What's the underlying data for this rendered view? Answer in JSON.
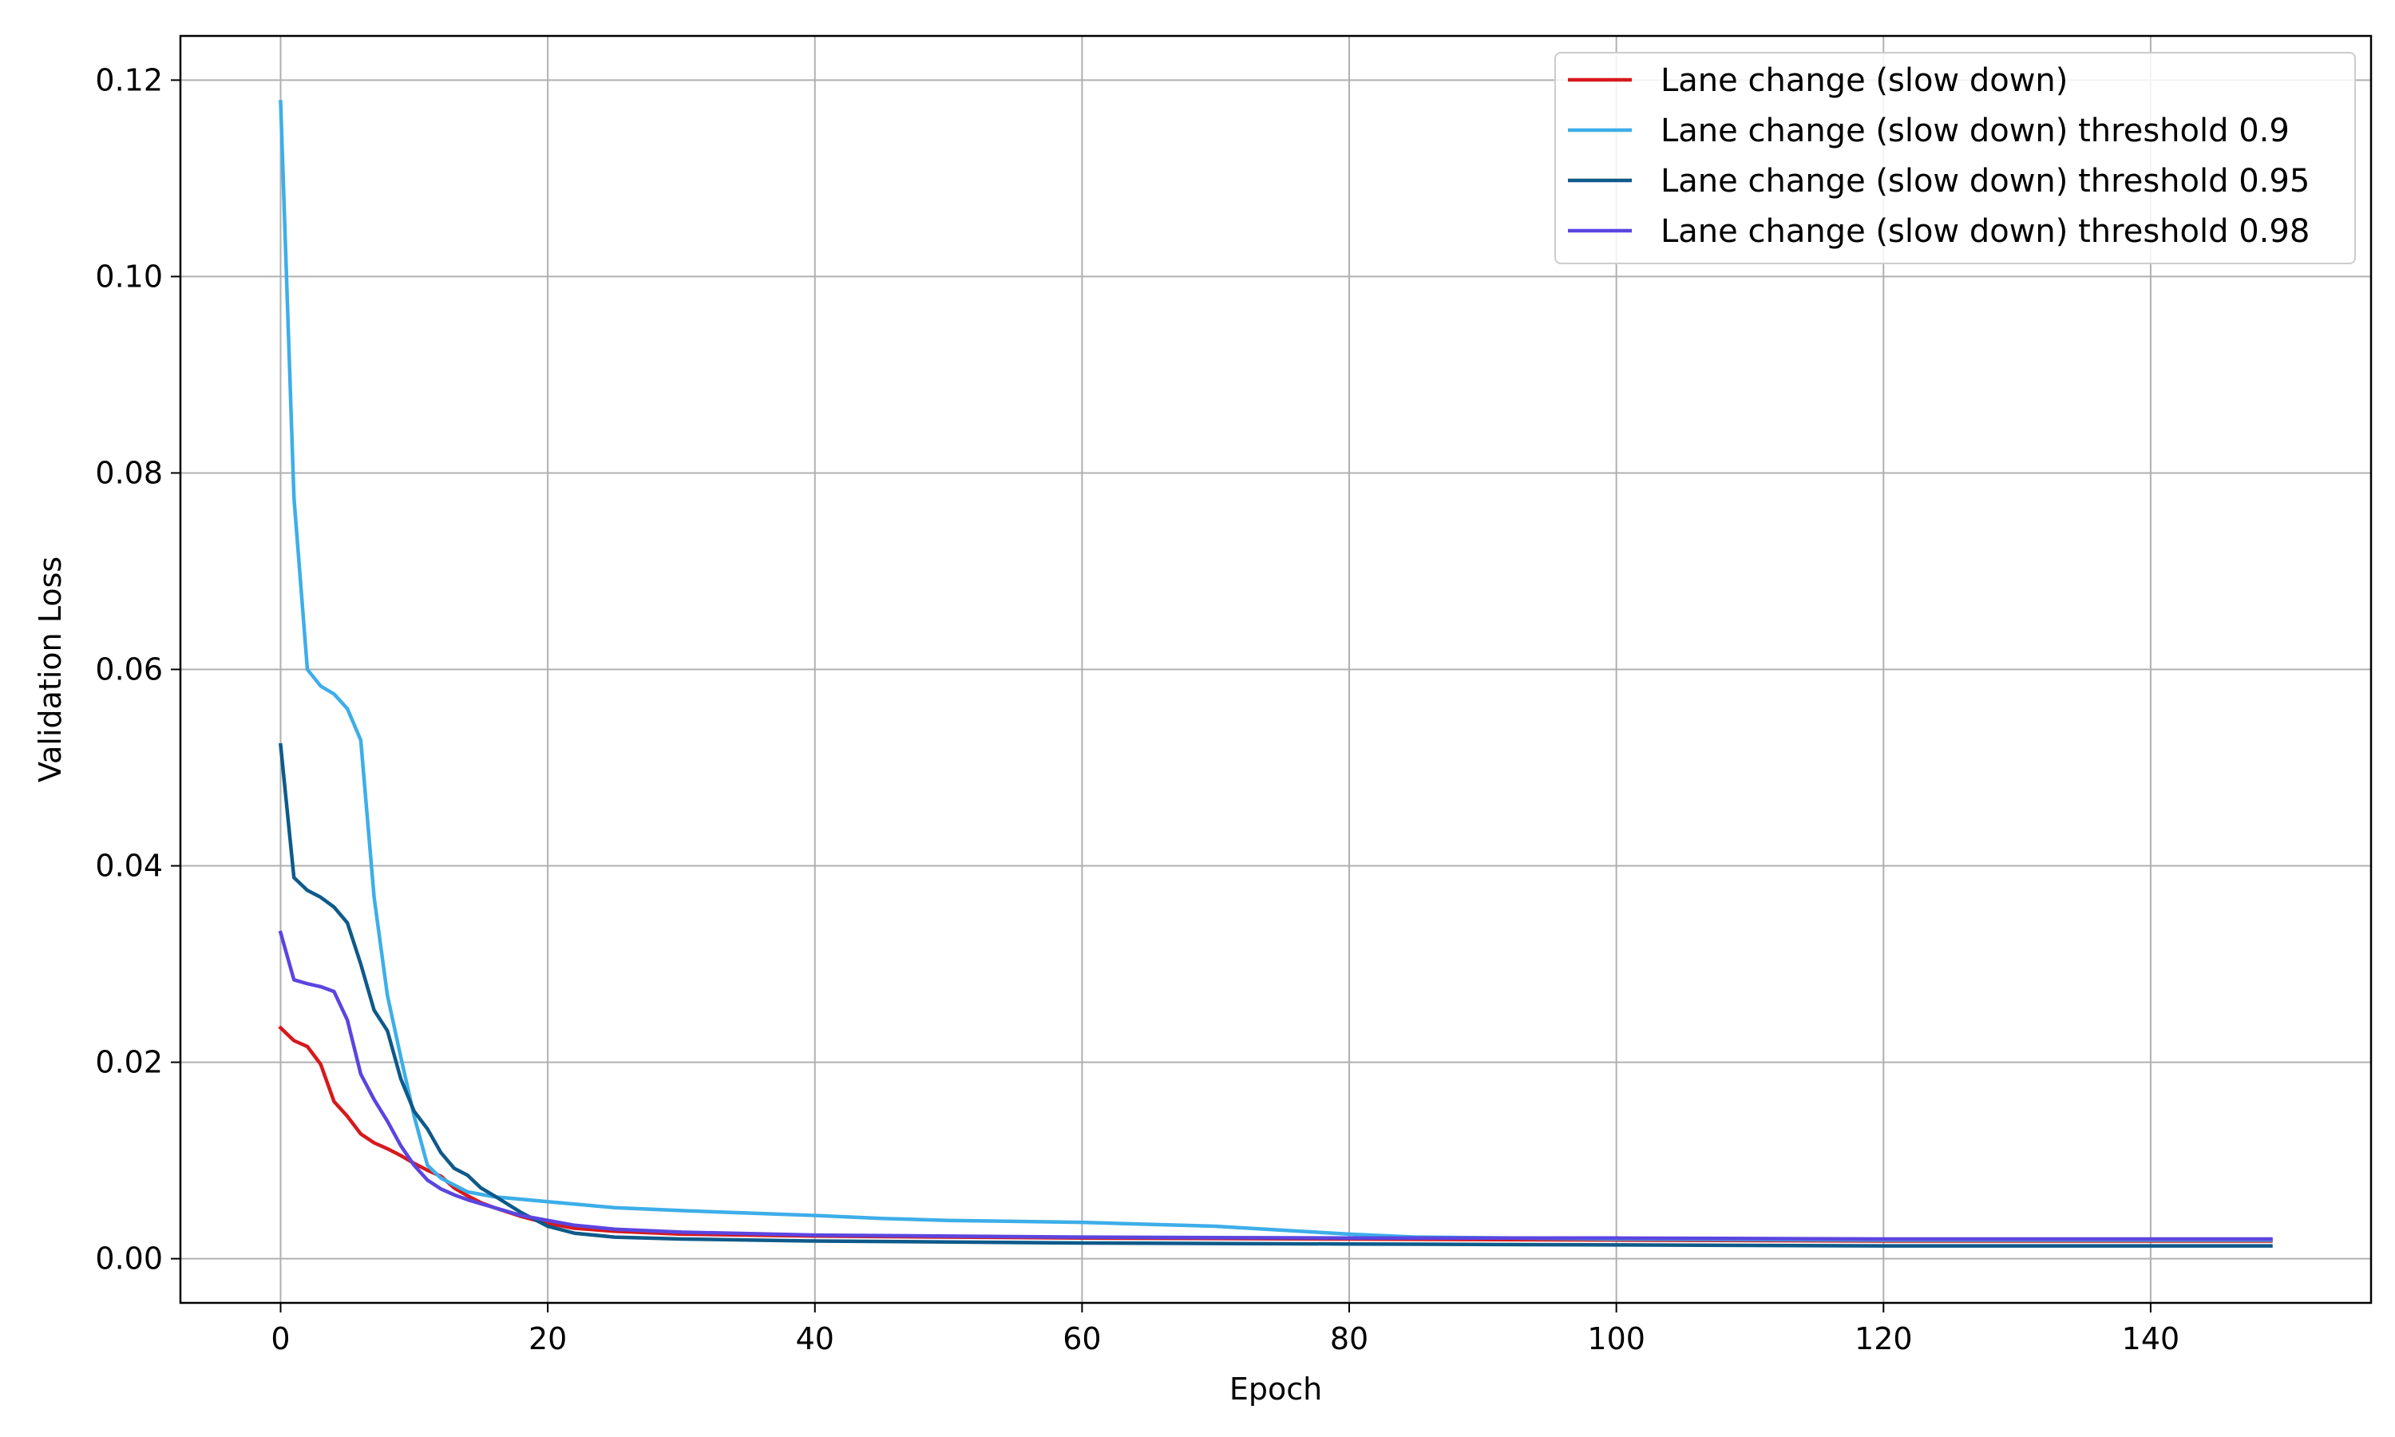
{
  "chart_data": {
    "type": "line",
    "xlabel": "Epoch",
    "ylabel": "Validation Loss",
    "xlim": [
      -7.5,
      156.5
    ],
    "ylim": [
      -0.0045,
      0.1245
    ],
    "xticks": [
      0,
      20,
      40,
      60,
      80,
      100,
      120,
      140
    ],
    "xtick_labels": [
      "0",
      "20",
      "40",
      "60",
      "80",
      "100",
      "120",
      "140"
    ],
    "yticks": [
      0.0,
      0.02,
      0.04,
      0.06,
      0.08,
      0.1,
      0.12
    ],
    "ytick_labels": [
      "0.00",
      "0.02",
      "0.04",
      "0.06",
      "0.08",
      "0.10",
      "0.12"
    ],
    "grid": true,
    "legend_position": "top-right",
    "series": [
      {
        "name": "Lane change (slow down)",
        "color": "#d7191c",
        "points": [
          [
            0,
            0.0235
          ],
          [
            1,
            0.0222
          ],
          [
            2,
            0.0216
          ],
          [
            3,
            0.0198
          ],
          [
            4,
            0.016
          ],
          [
            5,
            0.0145
          ],
          [
            6,
            0.0127
          ],
          [
            7,
            0.0118
          ],
          [
            8,
            0.0112
          ],
          [
            9,
            0.0105
          ],
          [
            10,
            0.0097
          ],
          [
            11,
            0.009
          ],
          [
            12,
            0.0084
          ],
          [
            13,
            0.0072
          ],
          [
            14,
            0.0064
          ],
          [
            15,
            0.0057
          ],
          [
            16,
            0.0052
          ],
          [
            18,
            0.0043
          ],
          [
            20,
            0.0036
          ],
          [
            22,
            0.0031
          ],
          [
            25,
            0.0028
          ],
          [
            30,
            0.0025
          ],
          [
            40,
            0.0023
          ],
          [
            60,
            0.0021
          ],
          [
            80,
            0.002
          ],
          [
            100,
            0.0019
          ],
          [
            120,
            0.0018
          ],
          [
            149,
            0.0018
          ]
        ]
      },
      {
        "name": "Lane change (slow down) threshold 0.9",
        "color": "#3daee9",
        "points": [
          [
            0,
            0.1178
          ],
          [
            1,
            0.0775
          ],
          [
            2,
            0.06
          ],
          [
            3,
            0.0583
          ],
          [
            4,
            0.0575
          ],
          [
            5,
            0.056
          ],
          [
            6,
            0.0528
          ],
          [
            7,
            0.0368
          ],
          [
            8,
            0.0268
          ],
          [
            9,
            0.0205
          ],
          [
            10,
            0.0145
          ],
          [
            11,
            0.0095
          ],
          [
            12,
            0.0082
          ],
          [
            13,
            0.0075
          ],
          [
            14,
            0.0068
          ],
          [
            16,
            0.0063
          ],
          [
            20,
            0.0058
          ],
          [
            25,
            0.0052
          ],
          [
            30,
            0.0049
          ],
          [
            40,
            0.0044
          ],
          [
            45,
            0.0041
          ],
          [
            50,
            0.0039
          ],
          [
            60,
            0.0037
          ],
          [
            70,
            0.0033
          ],
          [
            80,
            0.0025
          ],
          [
            85,
            0.0022
          ],
          [
            100,
            0.002
          ],
          [
            120,
            0.0019
          ],
          [
            149,
            0.0019
          ]
        ]
      },
      {
        "name": "Lane change (slow down) threshold 0.95",
        "color": "#0e5a8a",
        "points": [
          [
            0,
            0.0523
          ],
          [
            1,
            0.0388
          ],
          [
            2,
            0.0375
          ],
          [
            3,
            0.0368
          ],
          [
            4,
            0.0358
          ],
          [
            5,
            0.0342
          ],
          [
            6,
            0.03
          ],
          [
            7,
            0.0253
          ],
          [
            8,
            0.0232
          ],
          [
            9,
            0.0183
          ],
          [
            10,
            0.015
          ],
          [
            11,
            0.0132
          ],
          [
            12,
            0.0108
          ],
          [
            13,
            0.0092
          ],
          [
            14,
            0.0085
          ],
          [
            15,
            0.0072
          ],
          [
            16,
            0.0064
          ],
          [
            18,
            0.0047
          ],
          [
            20,
            0.0033
          ],
          [
            22,
            0.0026
          ],
          [
            25,
            0.0022
          ],
          [
            30,
            0.002
          ],
          [
            40,
            0.0018
          ],
          [
            60,
            0.0016
          ],
          [
            80,
            0.0015
          ],
          [
            100,
            0.0014
          ],
          [
            120,
            0.0013
          ],
          [
            149,
            0.0013
          ]
        ]
      },
      {
        "name": "Lane change (slow down) threshold 0.98",
        "color": "#5b45e0",
        "points": [
          [
            0,
            0.0332
          ],
          [
            1,
            0.0284
          ],
          [
            2,
            0.028
          ],
          [
            3,
            0.0277
          ],
          [
            4,
            0.0272
          ],
          [
            5,
            0.0243
          ],
          [
            6,
            0.0188
          ],
          [
            7,
            0.0162
          ],
          [
            8,
            0.014
          ],
          [
            9,
            0.0115
          ],
          [
            10,
            0.0095
          ],
          [
            11,
            0.008
          ],
          [
            12,
            0.0071
          ],
          [
            13,
            0.0065
          ],
          [
            14,
            0.006
          ],
          [
            16,
            0.0052
          ],
          [
            18,
            0.0044
          ],
          [
            20,
            0.0039
          ],
          [
            22,
            0.0034
          ],
          [
            25,
            0.003
          ],
          [
            30,
            0.0027
          ],
          [
            40,
            0.0024
          ],
          [
            60,
            0.0022
          ],
          [
            80,
            0.0021
          ],
          [
            100,
            0.0021
          ],
          [
            120,
            0.002
          ],
          [
            149,
            0.002
          ]
        ]
      }
    ]
  }
}
